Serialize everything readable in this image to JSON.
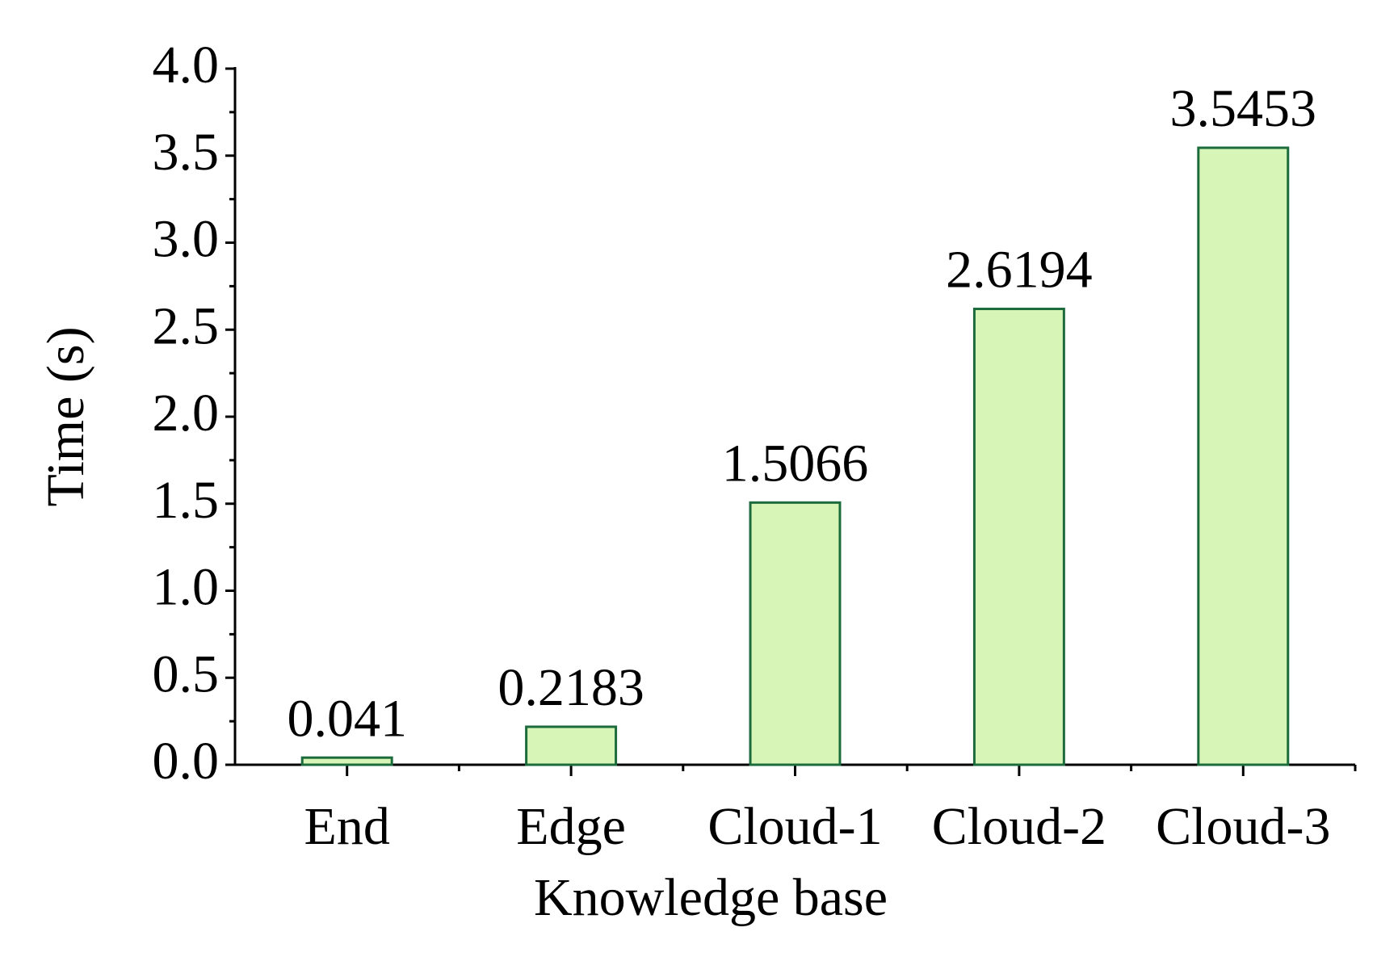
{
  "chart_data": {
    "type": "bar",
    "x_label": "Knowledge base",
    "y_label": "Time (s)",
    "categories": [
      "End",
      "Edge",
      "Cloud-1",
      "Cloud-2",
      "Cloud-3"
    ],
    "values": [
      0.041,
      0.2183,
      1.5066,
      2.6194,
      3.5453
    ],
    "color": "#d8f5b8",
    "edge_color": "#1c6b3c",
    "ylim": [
      0,
      4
    ],
    "yticks": [
      {
        "value": 0,
        "label": "0.0"
      },
      {
        "value": 0.5,
        "label": "0.5"
      },
      {
        "value": 1,
        "label": "1.0"
      },
      {
        "value": 1.5,
        "label": "1.5"
      },
      {
        "value": 2,
        "label": "2.0"
      },
      {
        "value": 2.5,
        "label": "2.5"
      },
      {
        "value": 3,
        "label": "3.0"
      },
      {
        "value": 3.5,
        "label": "3.5"
      },
      {
        "value": 4,
        "label": "4.0"
      }
    ],
    "grid": false
  }
}
